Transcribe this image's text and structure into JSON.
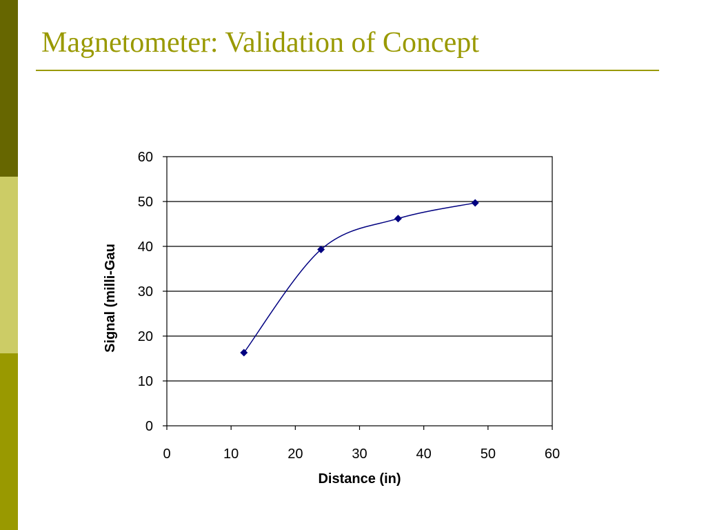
{
  "slide": {
    "title": "Magnetometer: Validation of Concept",
    "accent_color": "#999900",
    "sidebar_colors": [
      "#666600",
      "#cccc66",
      "#999900"
    ]
  },
  "chart_data": {
    "type": "line",
    "title": "",
    "xlabel": "Distance (in)",
    "ylabel": "Signal (milli-Gau",
    "x": [
      12,
      24,
      36,
      48
    ],
    "series": [
      {
        "values": [
          16.3,
          39.3,
          46.2,
          49.7
        ],
        "color": "#000080",
        "marker": "diamond"
      }
    ],
    "xlim": [
      0,
      60
    ],
    "ylim": [
      0,
      60
    ],
    "xticks": [
      0,
      10,
      20,
      30,
      40,
      50,
      60
    ],
    "yticks": [
      0,
      10,
      20,
      30,
      40,
      50,
      60
    ],
    "grid": "horizontal",
    "smooth": true,
    "legend": "none"
  }
}
